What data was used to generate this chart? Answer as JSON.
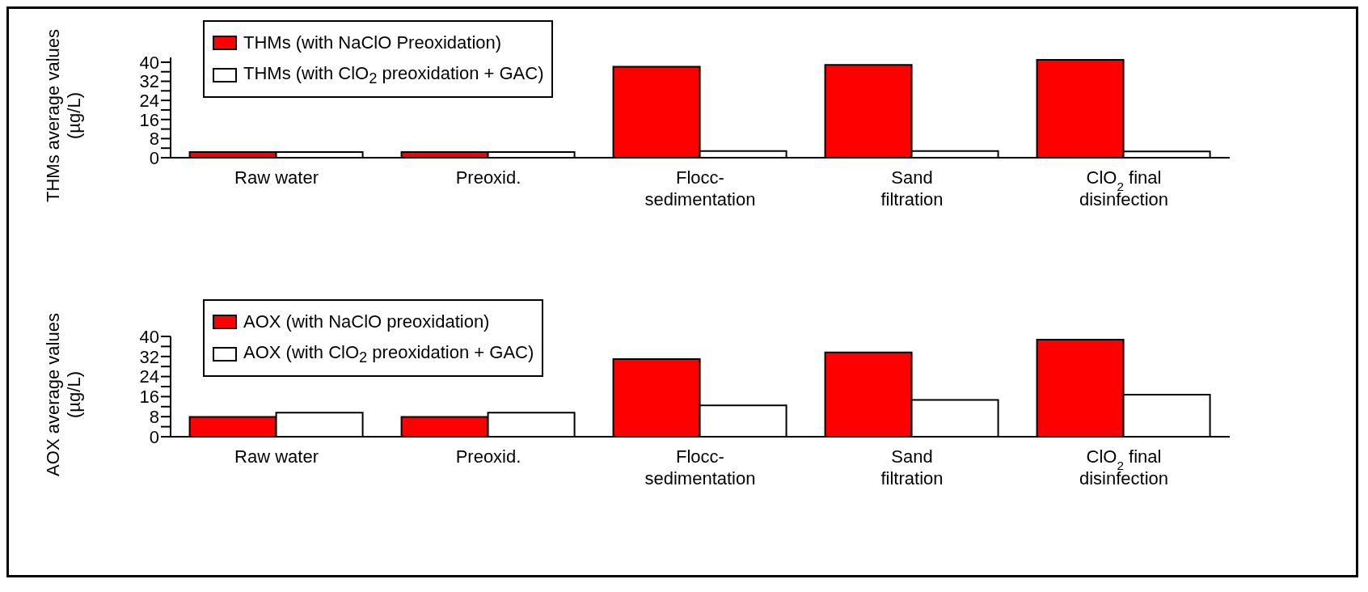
{
  "chart_data": [
    {
      "type": "bar",
      "categories": [
        "Raw water",
        "Preoxid.",
        "Flocc-\nsedimentation",
        "Sand\nfiltration",
        "ClO$_{2}$ final\ndisinfection"
      ],
      "ylabel": "THMs average values\n(µg/L)",
      "ylim": [
        0,
        42
      ],
      "yticks": [
        0,
        {
          "value": 4,
          "label": null
        },
        8,
        {
          "value": 12,
          "label": null
        },
        16,
        {
          "value": 20,
          "label": null
        },
        24,
        {
          "value": 28,
          "label": null
        },
        32,
        {
          "value": 36,
          "label": null
        },
        40
      ],
      "grid": false,
      "legend": "top left",
      "series": [
        {
          "name": "THMs (with NaClO Preoxidation)",
          "color": "#ff0000",
          "values": [
            2.4,
            2.4,
            38.1,
            38.9,
            41.0
          ]
        },
        {
          "name": "THMs (with ClO$_{2}$ preoxidation + GAC)",
          "color": "#ffffff",
          "values": [
            2.4,
            2.4,
            2.8,
            2.8,
            2.6
          ]
        }
      ]
    },
    {
      "type": "bar",
      "categories": [
        "Raw water",
        "Preoxid.",
        "Flocc-\nsedimentation",
        "Sand\nfiltration",
        "ClO$_{2}$ final\ndisinfection"
      ],
      "ylabel": "AOX average values\n(µg/L)",
      "ylim": [
        0,
        40
      ],
      "yticks": [
        0,
        {
          "value": 4,
          "label": null
        },
        8,
        {
          "value": 12,
          "label": null
        },
        16,
        {
          "value": 20,
          "label": null
        },
        24,
        {
          "value": 28,
          "label": null
        },
        32,
        {
          "value": 36,
          "label": null
        },
        40
      ],
      "grid": false,
      "legend": "top left",
      "series": [
        {
          "name": "AOX (with NaClO preoxidation)",
          "color": "#ff0000",
          "values": [
            7.9,
            7.9,
            31.0,
            33.6,
            38.7
          ]
        },
        {
          "name": "AOX (with ClO$_{2}$ preoxidation + GAC)",
          "color": "#ffffff",
          "values": [
            9.6,
            9.6,
            12.5,
            14.7,
            16.8
          ]
        }
      ]
    }
  ]
}
